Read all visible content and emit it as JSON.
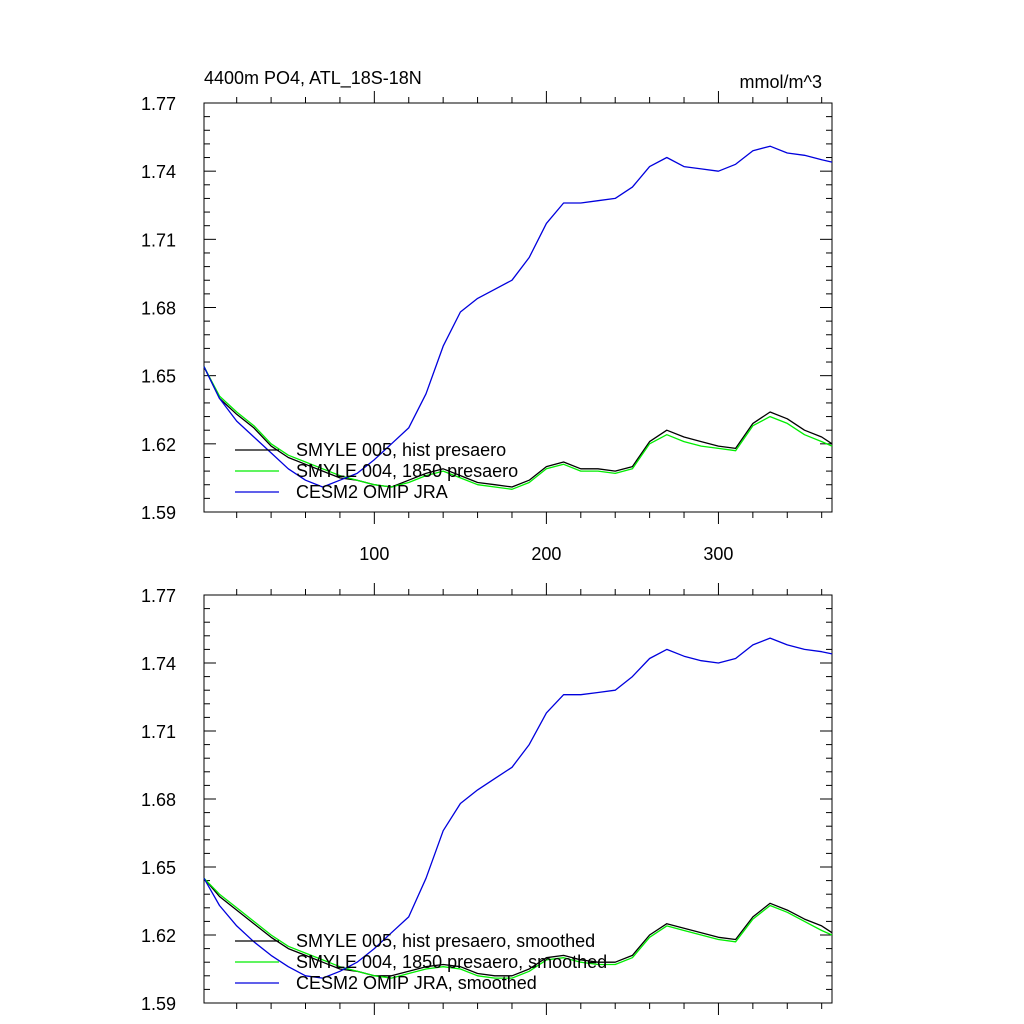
{
  "chart_data": [
    {
      "type": "line",
      "title": "4400m PO4, ATL_18S-18N",
      "units": "mmol/m^3",
      "xlim": [
        1,
        366
      ],
      "ylim": [
        1.59,
        1.77
      ],
      "yticks": [
        "1.77",
        "1.74",
        "1.71",
        "1.68",
        "1.65",
        "1.62",
        "1.59"
      ],
      "yticks_values": [
        1.77,
        1.74,
        1.71,
        1.68,
        1.65,
        1.62,
        1.59
      ],
      "xticks": [
        "100",
        "200",
        "300"
      ],
      "xticks_values": [
        100,
        200,
        300
      ],
      "show_xticklabels": true,
      "legend": [
        "SMYLE 005, hist presaero",
        "SMYLE 004, 1850 presaero",
        "CESM2 OMIP JRA"
      ],
      "series": [
        {
          "name": "SMYLE 005, hist presaero",
          "color": "#000000",
          "x": [
            1,
            10,
            20,
            30,
            40,
            50,
            60,
            70,
            80,
            90,
            100,
            110,
            120,
            130,
            140,
            150,
            160,
            170,
            180,
            190,
            200,
            210,
            220,
            230,
            240,
            250,
            260,
            270,
            280,
            290,
            300,
            310,
            320,
            330,
            340,
            350,
            360,
            366
          ],
          "y": [
            1.654,
            1.64,
            1.633,
            1.627,
            1.619,
            1.614,
            1.611,
            1.608,
            1.605,
            1.604,
            1.602,
            1.601,
            1.604,
            1.607,
            1.609,
            1.606,
            1.603,
            1.602,
            1.601,
            1.604,
            1.61,
            1.612,
            1.609,
            1.609,
            1.608,
            1.61,
            1.621,
            1.626,
            1.623,
            1.621,
            1.619,
            1.618,
            1.629,
            1.634,
            1.631,
            1.626,
            1.623,
            1.62
          ]
        },
        {
          "name": "SMYLE 004, 1850 presaero",
          "color": "#00ee00",
          "x": [
            1,
            10,
            20,
            30,
            40,
            50,
            60,
            70,
            80,
            90,
            100,
            110,
            120,
            130,
            140,
            150,
            160,
            170,
            180,
            190,
            200,
            210,
            220,
            230,
            240,
            250,
            260,
            270,
            280,
            290,
            300,
            310,
            320,
            330,
            340,
            350,
            360,
            366
          ],
          "y": [
            1.654,
            1.641,
            1.634,
            1.628,
            1.62,
            1.615,
            1.612,
            1.609,
            1.606,
            1.604,
            1.602,
            1.601,
            1.603,
            1.606,
            1.608,
            1.605,
            1.602,
            1.601,
            1.6,
            1.603,
            1.609,
            1.611,
            1.608,
            1.608,
            1.607,
            1.609,
            1.62,
            1.624,
            1.621,
            1.619,
            1.618,
            1.617,
            1.628,
            1.632,
            1.629,
            1.624,
            1.621,
            1.619
          ]
        },
        {
          "name": "CESM2 OMIP JRA",
          "color": "#0000dd",
          "x": [
            1,
            10,
            20,
            30,
            40,
            50,
            60,
            70,
            80,
            90,
            100,
            110,
            120,
            130,
            140,
            150,
            160,
            170,
            180,
            190,
            200,
            210,
            220,
            230,
            240,
            250,
            260,
            270,
            280,
            290,
            300,
            310,
            320,
            330,
            340,
            350,
            360,
            366
          ],
          "y": [
            1.654,
            1.64,
            1.63,
            1.623,
            1.616,
            1.609,
            1.604,
            1.601,
            1.604,
            1.607,
            1.613,
            1.62,
            1.627,
            1.642,
            1.663,
            1.678,
            1.684,
            1.688,
            1.692,
            1.702,
            1.717,
            1.726,
            1.726,
            1.727,
            1.728,
            1.733,
            1.742,
            1.746,
            1.742,
            1.741,
            1.74,
            1.743,
            1.749,
            1.751,
            1.748,
            1.747,
            1.745,
            1.744
          ]
        }
      ]
    },
    {
      "type": "line",
      "title": "",
      "units": "",
      "xlim": [
        1,
        366
      ],
      "ylim": [
        1.59,
        1.77
      ],
      "yticks": [
        "1.77",
        "1.74",
        "1.71",
        "1.68",
        "1.65",
        "1.62",
        "1.59"
      ],
      "yticks_values": [
        1.77,
        1.74,
        1.71,
        1.68,
        1.65,
        1.62,
        1.59
      ],
      "xticks": [
        "100",
        "200",
        "300"
      ],
      "xticks_values": [
        100,
        200,
        300
      ],
      "show_xticklabels": false,
      "legend": [
        "SMYLE 005, hist presaero, smoothed",
        "SMYLE 004, 1850 presaero, smoothed",
        "CESM2 OMIP JRA, smoothed"
      ],
      "series": [
        {
          "name": "SMYLE 005, hist presaero, smoothed",
          "color": "#000000",
          "x": [
            1,
            10,
            20,
            30,
            40,
            50,
            60,
            70,
            80,
            90,
            100,
            110,
            120,
            130,
            140,
            150,
            160,
            170,
            180,
            190,
            200,
            210,
            220,
            230,
            240,
            250,
            260,
            270,
            280,
            290,
            300,
            310,
            320,
            330,
            340,
            350,
            360,
            366
          ],
          "y": [
            1.645,
            1.637,
            1.631,
            1.625,
            1.619,
            1.614,
            1.611,
            1.608,
            1.605,
            1.604,
            1.602,
            1.602,
            1.604,
            1.606,
            1.607,
            1.606,
            1.603,
            1.602,
            1.602,
            1.605,
            1.61,
            1.611,
            1.609,
            1.608,
            1.608,
            1.611,
            1.62,
            1.625,
            1.623,
            1.621,
            1.619,
            1.618,
            1.628,
            1.634,
            1.631,
            1.627,
            1.624,
            1.621
          ]
        },
        {
          "name": "SMYLE 004, 1850 presaero, smoothed",
          "color": "#00ee00",
          "x": [
            1,
            10,
            20,
            30,
            40,
            50,
            60,
            70,
            80,
            90,
            100,
            110,
            120,
            130,
            140,
            150,
            160,
            170,
            180,
            190,
            200,
            210,
            220,
            230,
            240,
            250,
            260,
            270,
            280,
            290,
            300,
            310,
            320,
            330,
            340,
            350,
            360,
            366
          ],
          "y": [
            1.645,
            1.638,
            1.632,
            1.626,
            1.62,
            1.615,
            1.612,
            1.609,
            1.606,
            1.604,
            1.602,
            1.601,
            1.603,
            1.605,
            1.606,
            1.605,
            1.602,
            1.601,
            1.601,
            1.604,
            1.609,
            1.61,
            1.608,
            1.607,
            1.607,
            1.61,
            1.619,
            1.624,
            1.622,
            1.62,
            1.618,
            1.617,
            1.627,
            1.633,
            1.63,
            1.626,
            1.622,
            1.62
          ]
        },
        {
          "name": "CESM2 OMIP JRA, smoothed",
          "color": "#0000dd",
          "x": [
            1,
            10,
            20,
            30,
            40,
            50,
            60,
            70,
            80,
            90,
            100,
            110,
            120,
            130,
            140,
            150,
            160,
            170,
            180,
            190,
            200,
            210,
            220,
            230,
            240,
            250,
            260,
            270,
            280,
            290,
            300,
            310,
            320,
            330,
            340,
            350,
            360,
            366
          ],
          "y": [
            1.645,
            1.633,
            1.624,
            1.617,
            1.611,
            1.606,
            1.602,
            1.601,
            1.604,
            1.608,
            1.614,
            1.621,
            1.628,
            1.645,
            1.666,
            1.678,
            1.684,
            1.689,
            1.694,
            1.704,
            1.718,
            1.726,
            1.726,
            1.727,
            1.728,
            1.734,
            1.742,
            1.746,
            1.743,
            1.741,
            1.74,
            1.742,
            1.748,
            1.751,
            1.748,
            1.746,
            1.745,
            1.744
          ]
        }
      ]
    }
  ]
}
